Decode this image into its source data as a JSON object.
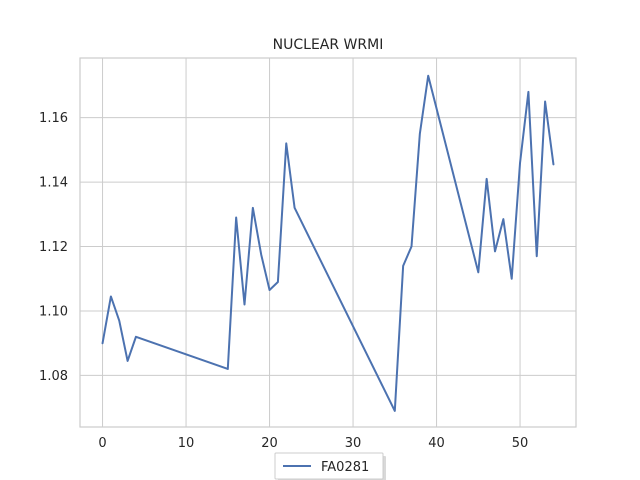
{
  "chart_data": {
    "type": "line",
    "title": "NUCLEAR WRMI",
    "xlabel": "",
    "ylabel": "",
    "xlim": [
      -2.7,
      56.7
    ],
    "ylim": [
      1.064,
      1.1785
    ],
    "xticks": [
      0,
      10,
      20,
      30,
      40,
      50
    ],
    "yticks": [
      1.08,
      1.1,
      1.12,
      1.14,
      1.16
    ],
    "xtick_labels": [
      "0",
      "10",
      "20",
      "30",
      "40",
      "50"
    ],
    "ytick_labels": [
      "1.08",
      "1.10",
      "1.12",
      "1.14",
      "1.16"
    ],
    "grid": true,
    "legend_position": "bottom-center",
    "series": [
      {
        "name": "FA0281",
        "color": "#4c72b0",
        "x": [
          0,
          1,
          2,
          3,
          4,
          15,
          16,
          17,
          18,
          19,
          20,
          21,
          22,
          23,
          35,
          36,
          37,
          38,
          39,
          45,
          46,
          47,
          48,
          49,
          50,
          51,
          52,
          53,
          54
        ],
        "y": [
          1.09,
          1.1045,
          1.097,
          1.0845,
          1.092,
          1.082,
          1.129,
          1.102,
          1.132,
          1.1175,
          1.1065,
          1.109,
          1.152,
          1.132,
          1.069,
          1.114,
          1.12,
          1.155,
          1.173,
          1.112,
          1.141,
          1.1185,
          1.1285,
          1.11,
          1.146,
          1.168,
          1.117,
          1.165,
          1.1455
        ]
      }
    ]
  }
}
